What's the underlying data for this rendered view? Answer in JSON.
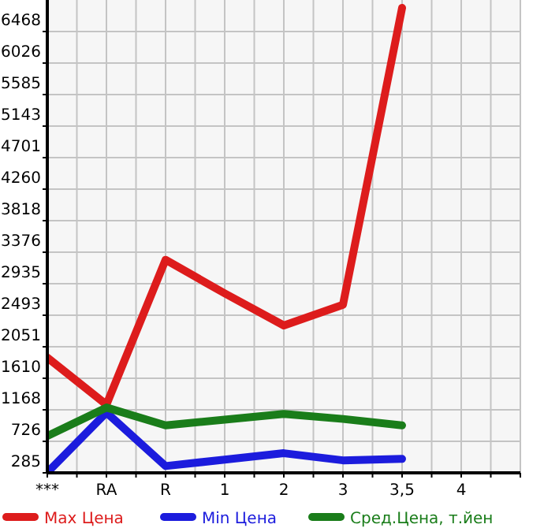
{
  "chart_data": {
    "type": "line",
    "categories": [
      "***",
      "RA",
      "R",
      "1",
      "2",
      "3",
      "3,5",
      "4"
    ],
    "series": [
      {
        "name": "Max Цена",
        "color": "#dd1c1c",
        "values": [
          1900,
          1240,
          3270,
          2800,
          2350,
          2640,
          6800,
          null
        ]
      },
      {
        "name": "Min Цена",
        "color": "#1c1cdd",
        "values": [
          290,
          1130,
          380,
          470,
          560,
          460,
          480,
          null
        ]
      },
      {
        "name": "Сред.Цена, т.йен",
        "color": "#1a7d1a",
        "values": [
          800,
          1200,
          950,
          1030,
          1110,
          1040,
          950,
          null
        ]
      }
    ],
    "ylim": [
      285,
      6910
    ],
    "yticks": [
      285,
      726,
      1168,
      1610,
      2051,
      2493,
      2935,
      3376,
      3818,
      4260,
      4701,
      5143,
      5585,
      6026,
      6468
    ],
    "grid": true,
    "legend": "bottom",
    "marker": "none",
    "line_style": "solid"
  }
}
